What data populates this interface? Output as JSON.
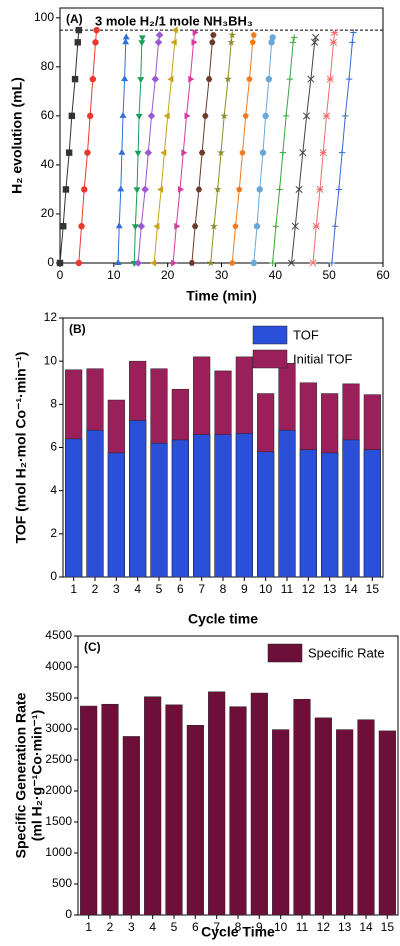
{
  "chart_data": [
    {
      "type": "scatter",
      "label": "(A)",
      "annotation": "3 mole H₂/1 mole NH₃BH₃",
      "xlabel": "Time (min)",
      "ylabel": "H₂ evolution (mL)",
      "xlim": [
        0,
        60
      ],
      "xticks": [
        0,
        10,
        20,
        30,
        40,
        50,
        60
      ],
      "ylim": [
        0,
        104
      ],
      "yticks": [
        0,
        20,
        40,
        60,
        80,
        100
      ],
      "hline": 95,
      "series": [
        {
          "color": "#333333",
          "marker": "square",
          "x": [
            0,
            0.6,
            1.1,
            1.7,
            2.2,
            2.8,
            3.3,
            3.5
          ],
          "values": [
            0,
            15,
            30,
            45,
            60,
            75,
            90,
            95
          ]
        },
        {
          "color": "#e8392f",
          "marker": "circle",
          "x": [
            3.5,
            4.0,
            4.5,
            5.1,
            5.6,
            6.1,
            6.6,
            6.8
          ],
          "values": [
            0,
            15,
            30,
            45,
            60,
            75,
            90,
            95
          ]
        },
        {
          "color": "#2f6fd6",
          "marker": "triangle-up",
          "x": [
            10.8,
            11.0,
            11.3,
            11.5,
            11.7,
            12.0,
            12.2,
            12.3
          ],
          "values": [
            0,
            15,
            30,
            45,
            60,
            75,
            90,
            92
          ]
        },
        {
          "color": "#1a9e5a",
          "marker": "triangle-down",
          "x": [
            13.8,
            14.0,
            14.3,
            14.5,
            14.7,
            15.0,
            15.2,
            15.3
          ],
          "values": [
            0,
            15,
            30,
            45,
            60,
            75,
            90,
            92
          ]
        },
        {
          "color": "#9b59d0",
          "marker": "diamond",
          "x": [
            14.5,
            15.1,
            15.8,
            16.4,
            17.0,
            17.7,
            18.3,
            18.5
          ],
          "values": [
            0,
            15,
            30,
            45,
            60,
            75,
            90,
            93
          ]
        },
        {
          "color": "#c9a21a",
          "marker": "triangle-left",
          "x": [
            17.5,
            18.1,
            18.8,
            19.4,
            20.0,
            20.7,
            21.3,
            21.5
          ],
          "values": [
            0,
            15,
            30,
            45,
            60,
            75,
            90,
            95
          ]
        },
        {
          "color": "#d63aa0",
          "marker": "triangle-right",
          "x": [
            21,
            21.6,
            22.3,
            22.9,
            23.5,
            24.2,
            24.8,
            25
          ],
          "values": [
            0,
            15,
            30,
            45,
            60,
            75,
            90,
            94
          ]
        },
        {
          "color": "#6b3a2a",
          "marker": "hexagon",
          "x": [
            24.5,
            25.1,
            25.8,
            26.4,
            27.0,
            27.7,
            28.3,
            28.5
          ],
          "values": [
            0,
            15,
            30,
            45,
            60,
            75,
            90,
            93
          ]
        },
        {
          "color": "#8c8c2a",
          "marker": "star",
          "x": [
            28,
            28.6,
            29.3,
            29.9,
            30.5,
            31.2,
            31.8,
            32
          ],
          "values": [
            0,
            15,
            30,
            45,
            60,
            75,
            90,
            93
          ]
        },
        {
          "color": "#f07a20",
          "marker": "pentagon",
          "x": [
            32,
            32.6,
            33.3,
            33.9,
            34.5,
            35.2,
            35.8,
            36
          ],
          "values": [
            0,
            15,
            30,
            45,
            60,
            75,
            90,
            93
          ]
        },
        {
          "color": "#6aa8d8",
          "marker": "sphere",
          "x": [
            36,
            36.6,
            37.1,
            37.7,
            38.2,
            38.8,
            39.3,
            39.5
          ],
          "values": [
            0,
            15,
            30,
            45,
            60,
            75,
            90,
            92
          ]
        },
        {
          "color": "#3aa83a",
          "marker": "plus",
          "x": [
            39.5,
            40.1,
            40.8,
            41.4,
            42.0,
            42.7,
            43.3,
            43.5
          ],
          "values": [
            0,
            15,
            30,
            45,
            60,
            75,
            90,
            92
          ]
        },
        {
          "color": "#444444",
          "marker": "x",
          "x": [
            43,
            43.7,
            44.4,
            45.1,
            45.8,
            46.6,
            47.3,
            47.5
          ],
          "values": [
            0,
            15,
            30,
            45,
            60,
            75,
            90,
            92
          ]
        },
        {
          "color": "#f06a6a",
          "marker": "asterisk",
          "x": [
            47,
            47.6,
            48.3,
            48.9,
            49.5,
            50.2,
            50.8,
            51
          ],
          "values": [
            0,
            15,
            30,
            45,
            60,
            75,
            90,
            94
          ]
        },
        {
          "color": "#3a6ad8",
          "marker": "plus",
          "x": [
            50.5,
            51.1,
            51.8,
            52.4,
            53.0,
            53.7,
            54.3,
            54.5
          ],
          "values": [
            0,
            15,
            30,
            45,
            60,
            75,
            90,
            94
          ]
        }
      ]
    },
    {
      "type": "bar",
      "label": "(B)",
      "xlabel": "Cycle time",
      "ylabel": "TOF (mol H₂·mol Co⁻¹·min⁻¹)",
      "categories": [
        "1",
        "2",
        "3",
        "4",
        "5",
        "6",
        "7",
        "8",
        "9",
        "10",
        "11",
        "12",
        "13",
        "14",
        "15"
      ],
      "ylim": [
        0,
        12
      ],
      "yticks": [
        0,
        2,
        4,
        6,
        8,
        10,
        12
      ],
      "legend": "top-right",
      "series": [
        {
          "name": "TOF",
          "color": "#2a4fd8",
          "values": [
            6.4,
            6.8,
            5.75,
            7.25,
            6.2,
            6.35,
            6.6,
            6.6,
            6.65,
            5.8,
            6.8,
            5.9,
            5.75,
            6.35,
            5.9
          ]
        },
        {
          "name": "Initial TOF",
          "color": "#9a1f5a",
          "values": [
            9.6,
            9.65,
            8.2,
            10.0,
            9.65,
            8.7,
            10.2,
            9.55,
            10.2,
            8.5,
            9.9,
            9.0,
            8.5,
            8.95,
            8.45
          ]
        }
      ]
    },
    {
      "type": "bar",
      "label": "(C)",
      "xlabel": "Cycle Time",
      "ylabel": [
        "Specific Generation Rate",
        "(ml H₂·g⁻¹Co·min⁻¹)"
      ],
      "categories": [
        "1",
        "2",
        "3",
        "4",
        "5",
        "6",
        "7",
        "8",
        "9",
        "10",
        "11",
        "12",
        "13",
        "14",
        "15"
      ],
      "ylim": [
        0,
        4500
      ],
      "yticks": [
        0,
        500,
        1000,
        1500,
        2000,
        2500,
        3000,
        3500,
        4000,
        4500
      ],
      "legend": "top-right",
      "series": [
        {
          "name": "Specific Rate",
          "color": "#6e0f3a",
          "values": [
            3370,
            3400,
            2880,
            3520,
            3390,
            3060,
            3600,
            3360,
            3580,
            2990,
            3480,
            3180,
            2990,
            3150,
            2970
          ]
        }
      ]
    }
  ]
}
